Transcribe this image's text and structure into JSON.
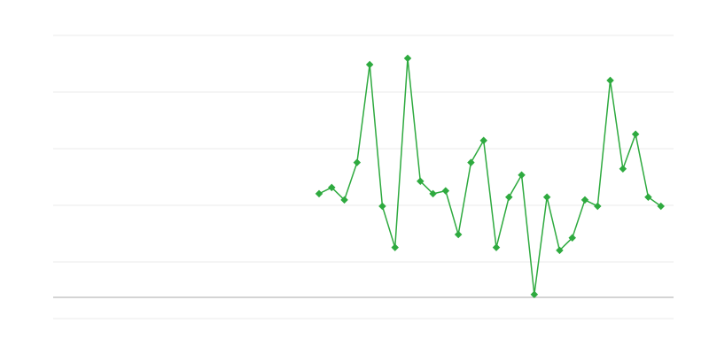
{
  "chart_data": {
    "type": "line",
    "title": "",
    "xlabel": "",
    "ylabel": "",
    "x": [
      21,
      22,
      23,
      24,
      25,
      26,
      27,
      28,
      29,
      30,
      31,
      32,
      33,
      34,
      35,
      36,
      37,
      38,
      39,
      40,
      41,
      42,
      43,
      44,
      45,
      46,
      47,
      48
    ],
    "xlim": [
      0,
      49
    ],
    "series": [
      {
        "values": [
          1.83,
          1.94,
          1.72,
          2.38,
          4.11,
          1.61,
          0.88,
          4.22,
          2.05,
          1.83,
          1.88,
          1.11,
          2.38,
          2.77,
          0.88,
          1.77,
          2.16,
          0.05,
          1.77,
          0.83,
          1.05,
          1.72,
          1.61,
          3.83,
          2.27,
          2.88,
          1.77,
          1.61
        ],
        "color": "#2eaa3f"
      }
    ],
    "ylim": [
      -0.375,
      4.625
    ],
    "gridlines": [
      -0.375,
      0.625,
      1.625,
      2.625,
      3.625,
      4.625
    ],
    "baseline": 0,
    "grid": true,
    "legend": "none",
    "tick_labels": "none",
    "colors": {
      "line": "#2eaa3f",
      "grid": "#ebebeb",
      "baseline": "#aaaaaa"
    }
  }
}
